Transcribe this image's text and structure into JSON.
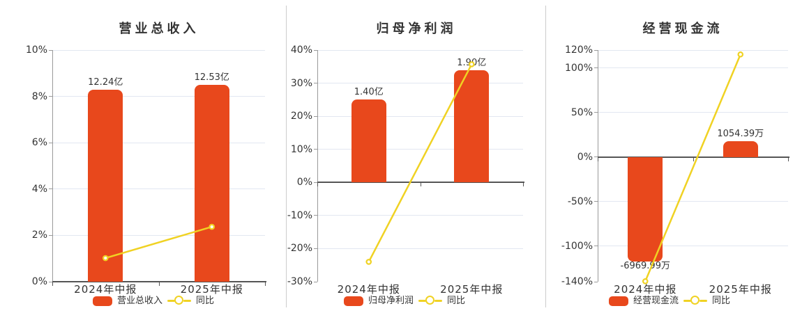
{
  "colors": {
    "bar": "#e8481c",
    "line": "#f0d223",
    "grid": "#e2e7f1",
    "zero_axis": "#555555",
    "y_axis": "#999999",
    "text": "#333333",
    "divider": "#cccccc",
    "background": "#ffffff"
  },
  "chart_data": [
    {
      "type": "bar",
      "title": "营业总收入",
      "categories": [
        "2024年中报",
        "2025年中报"
      ],
      "series": [
        {
          "name": "营业总收入",
          "type": "bar",
          "labels": [
            "12.24亿",
            "12.53亿"
          ],
          "axis_pct": [
            8.3,
            8.5
          ]
        },
        {
          "name": "同比",
          "type": "line",
          "axis_pct": [
            1.02,
            2.37
          ]
        }
      ],
      "ylabel": "",
      "ytick_suffix": "%",
      "ylim": [
        0,
        10
      ],
      "yticks": [
        10,
        8,
        6,
        4,
        2,
        0
      ],
      "grid": true,
      "legend_position": "bottom",
      "legend": [
        "营业总收入",
        "同比"
      ]
    },
    {
      "type": "bar",
      "title": "归母净利润",
      "categories": [
        "2024年中报",
        "2025年中报"
      ],
      "series": [
        {
          "name": "归母净利润",
          "type": "bar",
          "labels": [
            "1.40亿",
            "1.90亿"
          ],
          "axis_pct": [
            25,
            34
          ]
        },
        {
          "name": "同比",
          "type": "line",
          "axis_pct": [
            -24,
            35.71
          ]
        }
      ],
      "ylabel": "",
      "ytick_suffix": "%",
      "ylim": [
        -30,
        40
      ],
      "yticks": [
        40,
        30,
        20,
        10,
        0,
        -10,
        -20,
        -30
      ],
      "grid": true,
      "legend_position": "bottom",
      "legend": [
        "归母净利润",
        "同比"
      ]
    },
    {
      "type": "bar",
      "title": "经营现金流",
      "categories": [
        "2024年中报",
        "2025年中报"
      ],
      "series": [
        {
          "name": "经营现金流",
          "type": "bar",
          "labels": [
            "-6969.99万",
            "1054.39万"
          ],
          "axis_pct": [
            -117,
            17.7
          ]
        },
        {
          "name": "同比",
          "type": "line",
          "axis_pct": [
            -139.5,
            115.13
          ]
        }
      ],
      "ylabel": "",
      "ytick_suffix": "%",
      "ylim": [
        -140,
        120
      ],
      "yticks": [
        120,
        100,
        50,
        0,
        -50,
        -100,
        -140
      ],
      "grid": true,
      "legend_position": "bottom",
      "legend": [
        "经营现金流",
        "同比"
      ]
    }
  ]
}
